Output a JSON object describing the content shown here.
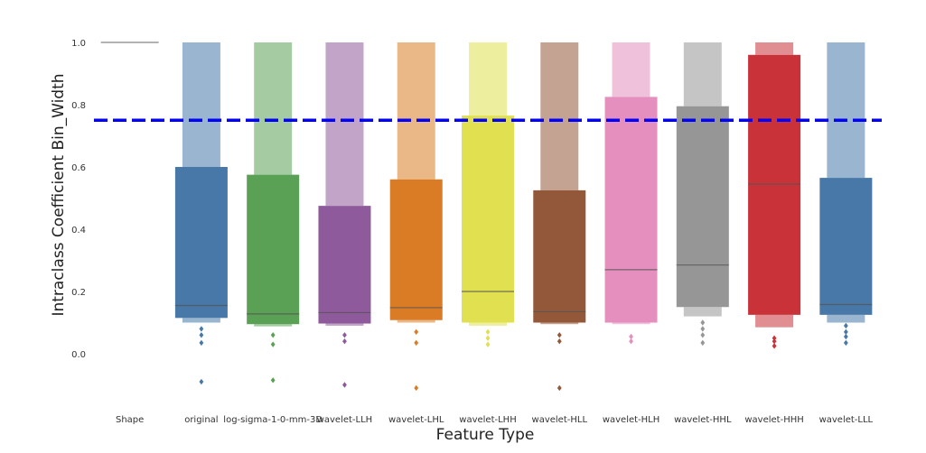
{
  "chart_data": {
    "type": "boxen",
    "xlabel": "Feature Type",
    "ylabel": "Intraclass Coefficient Bin_Width",
    "ylim": [
      -0.2,
      1.02
    ],
    "yticks": [
      0.0,
      0.2,
      0.4,
      0.6,
      0.8,
      1.0
    ],
    "ytick_labels": [
      "0.0",
      "0.2",
      "0.4",
      "0.6",
      "0.8",
      "1.0"
    ],
    "grid": false,
    "threshold": {
      "value": 0.75,
      "color": "#0000ff",
      "style": "dashed"
    },
    "categories": [
      "Shape",
      "original",
      "log-sigma-1-0-mm-3D",
      "wavelet-LLH",
      "wavelet-LHL",
      "wavelet-LHH",
      "wavelet-HLL",
      "wavelet-HLH",
      "wavelet-HHL",
      "wavelet-HHH",
      "wavelet-LLL"
    ],
    "boxes": [
      {
        "category": "Shape",
        "color": "#999999",
        "median": 1.0,
        "q1": 1.0,
        "q3": 1.0,
        "upper": [],
        "lower": [],
        "outliers": []
      },
      {
        "category": "original",
        "color": "#4878a8",
        "median": 0.155,
        "q1": 0.115,
        "q3": 0.6,
        "upper": [
          1.0
        ],
        "lower": [
          0.1
        ],
        "outliers": [
          0.08,
          0.06,
          0.035,
          -0.09
        ]
      },
      {
        "category": "log-sigma-1-0-mm-3D",
        "color": "#5aa155",
        "median": 0.128,
        "q1": 0.095,
        "q3": 0.575,
        "upper": [
          1.0
        ],
        "lower": [
          0.088
        ],
        "outliers": [
          0.06,
          0.03,
          -0.085
        ]
      },
      {
        "category": "wavelet-LLH",
        "color": "#8e5a9b",
        "median": 0.132,
        "q1": 0.097,
        "q3": 0.475,
        "upper": [
          1.0
        ],
        "lower": [
          0.09
        ],
        "outliers": [
          0.06,
          0.04,
          -0.1
        ]
      },
      {
        "category": "wavelet-LHL",
        "color": "#d97c25",
        "median": 0.148,
        "q1": 0.108,
        "q3": 0.56,
        "upper": [
          1.0
        ],
        "lower": [
          0.1
        ],
        "outliers": [
          0.07,
          0.035,
          -0.11
        ]
      },
      {
        "category": "wavelet-LHH",
        "color": "#e0e050",
        "median": 0.2,
        "q1": 0.1,
        "q3": 0.765,
        "upper": [
          1.0
        ],
        "lower": [
          0.09
        ],
        "outliers": [
          0.07,
          0.05,
          0.03
        ]
      },
      {
        "category": "wavelet-HLL",
        "color": "#93583a",
        "median": 0.135,
        "q1": 0.1,
        "q3": 0.525,
        "upper": [
          1.0
        ],
        "lower": [
          0.095
        ],
        "outliers": [
          0.06,
          0.04,
          -0.11
        ]
      },
      {
        "category": "wavelet-HLH",
        "color": "#e48fbd",
        "median": 0.27,
        "q1": 0.1,
        "q3": 0.825,
        "upper": [
          1.0
        ],
        "lower": [
          0.095
        ],
        "outliers": [
          0.055,
          0.04
        ]
      },
      {
        "category": "wavelet-HHL",
        "color": "#969696",
        "median": 0.285,
        "q1": 0.15,
        "q3": 0.795,
        "upper": [
          1.0
        ],
        "lower": [
          0.12
        ],
        "outliers": [
          0.1,
          0.08,
          0.06,
          0.035
        ]
      },
      {
        "category": "wavelet-HHH",
        "color": "#c93238",
        "median": 0.545,
        "q1": 0.125,
        "q3": 0.96,
        "upper": [
          1.0
        ],
        "lower": [
          0.085
        ],
        "outliers": [
          0.05,
          0.04,
          0.025
        ]
      },
      {
        "category": "wavelet-LLL",
        "color": "#4878a8",
        "median": 0.158,
        "q1": 0.125,
        "q3": 0.565,
        "upper": [
          1.0
        ],
        "lower": [
          0.1
        ],
        "outliers": [
          0.09,
          0.07,
          0.055,
          0.035
        ]
      }
    ]
  }
}
